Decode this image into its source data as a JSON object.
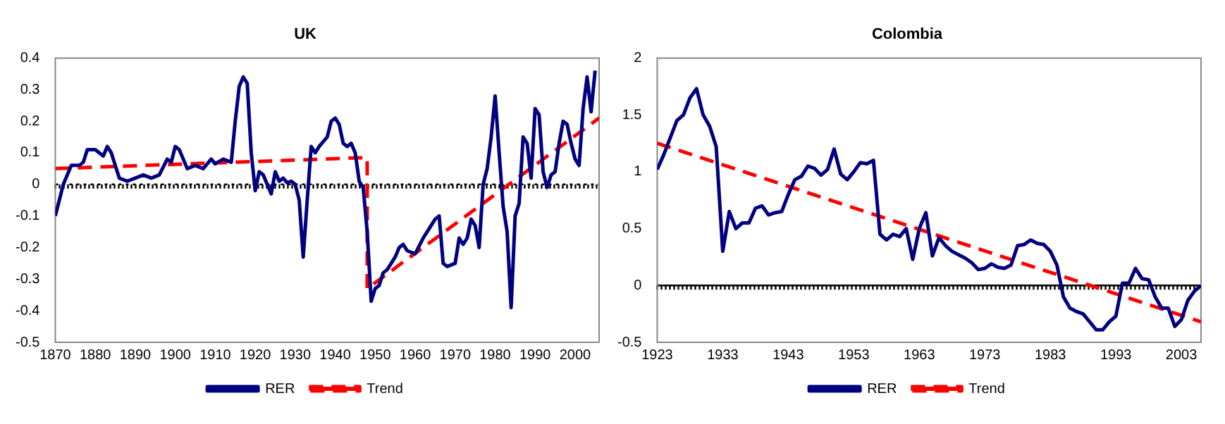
{
  "chart_data": [
    {
      "type": "line",
      "title": "UK",
      "xlim": [
        1870,
        2006
      ],
      "xticks": [
        1870,
        1880,
        1890,
        1900,
        1910,
        1920,
        1930,
        1940,
        1950,
        1960,
        1970,
        1980,
        1990,
        2000
      ],
      "ylim": [
        -0.5,
        0.4
      ],
      "yticks": [
        -0.5,
        -0.4,
        -0.3,
        -0.2,
        -0.1,
        0,
        0.1,
        0.2,
        0.3,
        0.4
      ],
      "grid": false,
      "legend": "bottom",
      "marker": "none",
      "ref_lines": [
        {
          "axis": "y",
          "value": 0,
          "color": "#000000",
          "line_style": "dotted"
        }
      ],
      "series": [
        {
          "name": "RER",
          "color": "#000080",
          "line_style": "solid",
          "x": [
            1870,
            1872,
            1874,
            1876,
            1877,
            1878,
            1880,
            1882,
            1883,
            1884,
            1886,
            1888,
            1890,
            1892,
            1894,
            1896,
            1898,
            1899,
            1900,
            1901,
            1903,
            1905,
            1907,
            1909,
            1910,
            1912,
            1914,
            1915,
            1916,
            1917,
            1918,
            1919,
            1920,
            1921,
            1922,
            1923,
            1924,
            1925,
            1926,
            1927,
            1928,
            1929,
            1930,
            1931,
            1932,
            1933,
            1934,
            1935,
            1936,
            1938,
            1939,
            1940,
            1941,
            1942,
            1943,
            1944,
            1945,
            1946,
            1947,
            1948,
            1949,
            1950,
            1951,
            1952,
            1953,
            1955,
            1956,
            1957,
            1958,
            1960,
            1962,
            1963,
            1965,
            1966,
            1967,
            1968,
            1970,
            1971,
            1972,
            1973,
            1974,
            1975,
            1976,
            1977,
            1978,
            1979,
            1980,
            1981,
            1982,
            1983,
            1984,
            1985,
            1986,
            1987,
            1988,
            1989,
            1990,
            1991,
            1992,
            1993,
            1994,
            1995,
            1996,
            1997,
            1998,
            1999,
            2000,
            2001,
            2002,
            2003,
            2004,
            2005
          ],
          "values": [
            -0.1,
            0.0,
            0.06,
            0.06,
            0.07,
            0.11,
            0.11,
            0.09,
            0.12,
            0.1,
            0.02,
            0.01,
            0.02,
            0.03,
            0.02,
            0.03,
            0.08,
            0.07,
            0.12,
            0.11,
            0.05,
            0.06,
            0.05,
            0.08,
            0.065,
            0.08,
            0.07,
            0.2,
            0.31,
            0.34,
            0.32,
            0.1,
            -0.02,
            0.04,
            0.03,
            0.0,
            -0.03,
            0.04,
            0.01,
            0.02,
            0.005,
            0.01,
            0.0,
            -0.05,
            -0.23,
            -0.05,
            0.12,
            0.1,
            0.12,
            0.15,
            0.2,
            0.21,
            0.19,
            0.13,
            0.12,
            0.13,
            0.1,
            0.01,
            -0.01,
            -0.15,
            -0.37,
            -0.33,
            -0.32,
            -0.28,
            -0.27,
            -0.23,
            -0.2,
            -0.19,
            -0.21,
            -0.22,
            -0.17,
            -0.15,
            -0.11,
            -0.1,
            -0.25,
            -0.26,
            -0.25,
            -0.17,
            -0.19,
            -0.17,
            -0.11,
            -0.13,
            -0.2,
            0.0,
            0.05,
            0.15,
            0.28,
            0.1,
            -0.07,
            -0.15,
            -0.39,
            -0.1,
            -0.06,
            0.15,
            0.13,
            0.02,
            0.24,
            0.22,
            0.04,
            -0.01,
            0.03,
            0.04,
            0.13,
            0.2,
            0.19,
            0.13,
            0.08,
            0.06,
            0.24,
            0.34,
            0.23,
            0.36
          ]
        },
        {
          "name": "Trend",
          "color": "#ff0000",
          "line_style": "dashed",
          "x": [
            1870,
            1948,
            1948,
            2006
          ],
          "values": [
            0.05,
            0.085,
            -0.33,
            0.21
          ]
        }
      ]
    },
    {
      "type": "line",
      "title": "Colombia",
      "xlim": [
        1923,
        2006
      ],
      "xticks": [
        1923,
        1933,
        1943,
        1953,
        1963,
        1973,
        1983,
        1993,
        2003
      ],
      "ylim": [
        -0.5,
        2
      ],
      "yticks": [
        -0.5,
        0,
        0.5,
        1,
        1.5,
        2
      ],
      "grid": false,
      "legend": "bottom",
      "marker": "none",
      "ref_lines": [
        {
          "axis": "y",
          "value": 0,
          "color": "#000000",
          "line_style": "solid"
        }
      ],
      "series": [
        {
          "name": "RER",
          "color": "#000080",
          "line_style": "solid",
          "x": [
            1923,
            1924,
            1925,
            1926,
            1927,
            1928,
            1929,
            1930,
            1931,
            1932,
            1933,
            1934,
            1935,
            1936,
            1937,
            1938,
            1939,
            1940,
            1941,
            1942,
            1943,
            1944,
            1945,
            1946,
            1947,
            1948,
            1949,
            1950,
            1951,
            1952,
            1953,
            1954,
            1955,
            1956,
            1957,
            1958,
            1959,
            1960,
            1961,
            1962,
            1963,
            1964,
            1965,
            1966,
            1967,
            1968,
            1969,
            1970,
            1971,
            1972,
            1973,
            1974,
            1975,
            1976,
            1977,
            1978,
            1979,
            1980,
            1981,
            1982,
            1983,
            1984,
            1985,
            1986,
            1987,
            1988,
            1989,
            1990,
            1991,
            1992,
            1993,
            1994,
            1995,
            1996,
            1997,
            1998,
            1999,
            2000,
            2001,
            2002,
            2003,
            2004,
            2005,
            2006
          ],
          "values": [
            1.02,
            1.15,
            1.3,
            1.45,
            1.5,
            1.65,
            1.73,
            1.5,
            1.4,
            1.22,
            0.3,
            0.65,
            0.5,
            0.55,
            0.55,
            0.68,
            0.7,
            0.62,
            0.64,
            0.65,
            0.8,
            0.93,
            0.96,
            1.05,
            1.03,
            0.97,
            1.02,
            1.2,
            0.98,
            0.93,
            1.0,
            1.08,
            1.07,
            1.1,
            0.45,
            0.4,
            0.45,
            0.43,
            0.5,
            0.23,
            0.5,
            0.64,
            0.26,
            0.42,
            0.35,
            0.3,
            0.27,
            0.24,
            0.2,
            0.14,
            0.15,
            0.19,
            0.16,
            0.15,
            0.18,
            0.35,
            0.36,
            0.4,
            0.37,
            0.36,
            0.3,
            0.18,
            -0.1,
            -0.2,
            -0.23,
            -0.25,
            -0.32,
            -0.39,
            -0.39,
            -0.32,
            -0.27,
            0.02,
            0.02,
            0.15,
            0.06,
            0.05,
            -0.1,
            -0.2,
            -0.2,
            -0.36,
            -0.3,
            -0.13,
            -0.05,
            0.0
          ]
        },
        {
          "name": "Trend",
          "color": "#ff0000",
          "line_style": "dashed",
          "x": [
            1923,
            2006
          ],
          "values": [
            1.25,
            -0.32
          ]
        }
      ]
    }
  ]
}
